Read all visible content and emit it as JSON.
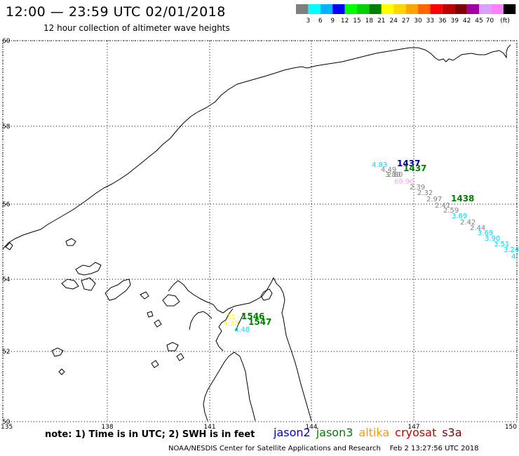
{
  "header": {
    "title": "12:00 — 23:59 UTC 02/01/2018",
    "subtitle": "12 hour collection of altimeter wave heights"
  },
  "legend_scale": {
    "units": "(ft)",
    "colors": [
      "#7f7f7f",
      "#00ffff",
      "#00b4ff",
      "#0000ff",
      "#00ff00",
      "#00d000",
      "#008000",
      "#ffff00",
      "#ffd700",
      "#ffa500",
      "#ff6600",
      "#ff0000",
      "#c00000",
      "#800000",
      "#a000a0",
      "#d8a0ff",
      "#ff80ff",
      "#000000"
    ],
    "labels": [
      "3",
      "6",
      "9",
      "12",
      "15",
      "18",
      "21",
      "24",
      "27",
      "30",
      "33",
      "36",
      "39",
      "42",
      "45",
      "70"
    ]
  },
  "map": {
    "lat_labels": [
      "60",
      "58",
      "56",
      "54",
      "52",
      "50"
    ],
    "lon_labels": [
      "135",
      "138",
      "141",
      "144",
      "147",
      "150"
    ],
    "observations": [
      {
        "text": "4.83",
        "color": "#00d8ff"
      },
      {
        "text": "1437",
        "color": "#000090"
      },
      {
        "text": "1437",
        "color": "#008000"
      },
      {
        "text": "4.49",
        "color": "#7f7f7f"
      },
      {
        "text": "3.80",
        "color": "#7f7f7f"
      },
      {
        "text": "2.80",
        "color": "#7f7f7f"
      },
      {
        "text": "69.90",
        "color": "#ff99ff"
      },
      {
        "text": "2.39",
        "color": "#7f7f7f"
      },
      {
        "text": "2.32",
        "color": "#7f7f7f"
      },
      {
        "text": "2.97",
        "color": "#7f7f7f"
      },
      {
        "text": "1438",
        "color": "#008000"
      },
      {
        "text": "2.41",
        "color": "#7f7f7f"
      },
      {
        "text": "2.59",
        "color": "#7f7f7f"
      },
      {
        "text": "3.69",
        "color": "#00d8ff"
      },
      {
        "text": "2.42",
        "color": "#7f7f7f"
      },
      {
        "text": "2.44",
        "color": "#7f7f7f"
      },
      {
        "text": "3.69",
        "color": "#00d8ff"
      },
      {
        "text": "3.90",
        "color": "#00d8ff"
      },
      {
        "text": "3.51",
        "color": "#00d8ff"
      },
      {
        "text": "3.24",
        "color": "#00d8ff"
      },
      {
        "text": "4.",
        "color": "#00d8ff"
      },
      {
        "text": "1546",
        "color": "#008000"
      },
      {
        "text": "1547",
        "color": "#008000"
      },
      {
        "text": ".71",
        "color": "#ffff00"
      },
      {
        "text": "4.32",
        "color": "#ffff00"
      },
      {
        "text": "4.48",
        "color": "#00d8ff"
      }
    ]
  },
  "footer": {
    "note": "note: 1) Time is in UTC; 2) SWH is in feet",
    "satellites": [
      {
        "name": "jason2",
        "color": "#0000cc"
      },
      {
        "name": "jason3",
        "color": "#008000"
      },
      {
        "name": "altika",
        "color": "#ff9900"
      },
      {
        "name": "cryosat",
        "color": "#cc0000"
      },
      {
        "name": "s3a",
        "color": "#800000"
      }
    ],
    "credit": "NOAA/NESDIS Center for Satellite Applications and Research",
    "timestamp": "Feb  2 13:27:56 UTC 2018"
  }
}
